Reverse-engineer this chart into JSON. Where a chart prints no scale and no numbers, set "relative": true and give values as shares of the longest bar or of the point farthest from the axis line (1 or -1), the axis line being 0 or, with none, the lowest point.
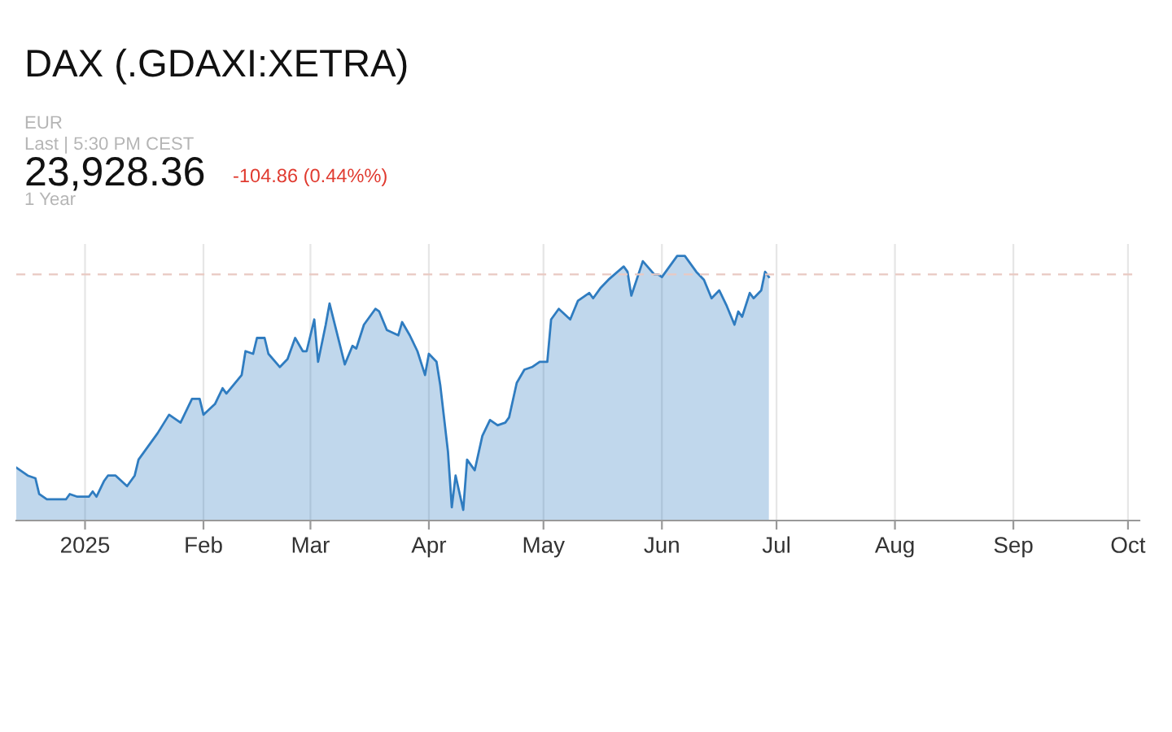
{
  "chart_data": {
    "type": "area",
    "title": "DAX (.GDAXI:XETRA)",
    "annotations": [
      "EUR",
      "Last | 5:30 PM CEST",
      "23,928.36",
      "-104.86 (0.44%%)",
      "1 Year"
    ],
    "relative": true,
    "x": [
      "2024-12-14",
      "2024-12-17",
      "2024-12-19",
      "2024-12-20",
      "2024-12-22",
      "2024-12-27",
      "2024-12-28",
      "2024-12-30",
      "2025-01-02",
      "2025-01-03",
      "2025-01-04",
      "2025-01-06",
      "2025-01-07",
      "2025-01-09",
      "2025-01-12",
      "2025-01-14",
      "2025-01-15",
      "2025-01-16",
      "2025-01-18",
      "2025-01-20",
      "2025-01-23",
      "2025-01-26",
      "2025-01-29",
      "2025-01-31",
      "2025-02-01",
      "2025-02-04",
      "2025-02-06",
      "2025-02-07",
      "2025-02-11",
      "2025-02-12",
      "2025-02-14",
      "2025-02-15",
      "2025-02-17",
      "2025-02-18",
      "2025-02-21",
      "2025-02-23",
      "2025-02-25",
      "2025-02-27",
      "2025-02-28",
      "2025-03-02",
      "2025-03-03",
      "2025-03-05",
      "2025-03-06",
      "2025-03-10",
      "2025-03-12",
      "2025-03-13",
      "2025-03-15",
      "2025-03-18",
      "2025-03-19",
      "2025-03-21",
      "2025-03-24",
      "2025-03-25",
      "2025-03-27",
      "2025-03-29",
      "2025-03-31",
      "2025-04-01",
      "2025-04-03",
      "2025-04-04",
      "2025-04-06",
      "2025-04-07",
      "2025-04-08",
      "2025-04-10",
      "2025-04-11",
      "2025-04-13",
      "2025-04-15",
      "2025-04-17",
      "2025-04-19",
      "2025-04-21",
      "2025-04-22",
      "2025-04-24",
      "2025-04-26",
      "2025-04-28",
      "2025-04-30",
      "2025-05-02",
      "2025-05-03",
      "2025-05-05",
      "2025-05-08",
      "2025-05-10",
      "2025-05-13",
      "2025-05-14",
      "2025-05-16",
      "2025-05-18",
      "2025-05-22",
      "2025-05-23",
      "2025-05-24",
      "2025-05-27",
      "2025-05-30",
      "2025-05-31",
      "2025-06-01",
      "2025-06-05",
      "2025-06-07",
      "2025-06-10",
      "2025-06-12",
      "2025-06-14",
      "2025-06-16",
      "2025-06-18",
      "2025-06-20",
      "2025-06-21",
      "2025-06-22",
      "2025-06-24",
      "2025-06-25",
      "2025-06-27",
      "2025-06-28",
      "2025-06-29"
    ],
    "series": [
      {
        "color": "#2f7cc0",
        "values": [
          0.2,
          0.17,
          0.16,
          0.1,
          0.08,
          0.08,
          0.1,
          0.09,
          0.09,
          0.11,
          0.09,
          0.15,
          0.17,
          0.17,
          0.13,
          0.17,
          0.23,
          0.25,
          0.29,
          0.33,
          0.4,
          0.37,
          0.46,
          0.46,
          0.4,
          0.44,
          0.5,
          0.48,
          0.55,
          0.64,
          0.63,
          0.69,
          0.69,
          0.63,
          0.58,
          0.61,
          0.69,
          0.64,
          0.64,
          0.76,
          0.6,
          0.74,
          0.82,
          0.59,
          0.66,
          0.65,
          0.74,
          0.8,
          0.79,
          0.72,
          0.7,
          0.75,
          0.7,
          0.64,
          0.55,
          0.63,
          0.6,
          0.51,
          0.26,
          0.05,
          0.17,
          0.04,
          0.23,
          0.19,
          0.32,
          0.38,
          0.36,
          0.37,
          0.39,
          0.52,
          0.57,
          0.58,
          0.6,
          0.6,
          0.76,
          0.8,
          0.76,
          0.83,
          0.86,
          0.84,
          0.88,
          0.91,
          0.96,
          0.94,
          0.85,
          0.98,
          0.93,
          0.93,
          0.92,
          1.0,
          1.0,
          0.94,
          0.91,
          0.84,
          0.87,
          0.81,
          0.74,
          0.79,
          0.77,
          0.86,
          0.84,
          0.87,
          0.94,
          0.92
        ]
      }
    ],
    "ref_lines": [
      {
        "axis": "y",
        "value": 0.93,
        "color": "#e9c9c2",
        "line_style": "dashed"
      }
    ],
    "xlim": [
      "2024-12-14",
      "2025-10-04"
    ],
    "xticks": [
      {
        "value": "2025-01-01",
        "label": "2025"
      },
      {
        "value": "2025-02-01",
        "label": "Feb"
      },
      {
        "value": "2025-03-01",
        "label": "Mar"
      },
      {
        "value": "2025-04-01",
        "label": "Apr"
      },
      {
        "value": "2025-05-01",
        "label": "May"
      },
      {
        "value": "2025-06-01",
        "label": "Jun"
      },
      {
        "value": "2025-07-01",
        "label": "Jul"
      },
      {
        "value": "2025-08-01",
        "label": "Aug"
      },
      {
        "value": "2025-09-01",
        "label": "Sep"
      },
      {
        "value": "2025-10-01",
        "label": "Oct"
      }
    ],
    "grid": "x",
    "legend": false
  }
}
